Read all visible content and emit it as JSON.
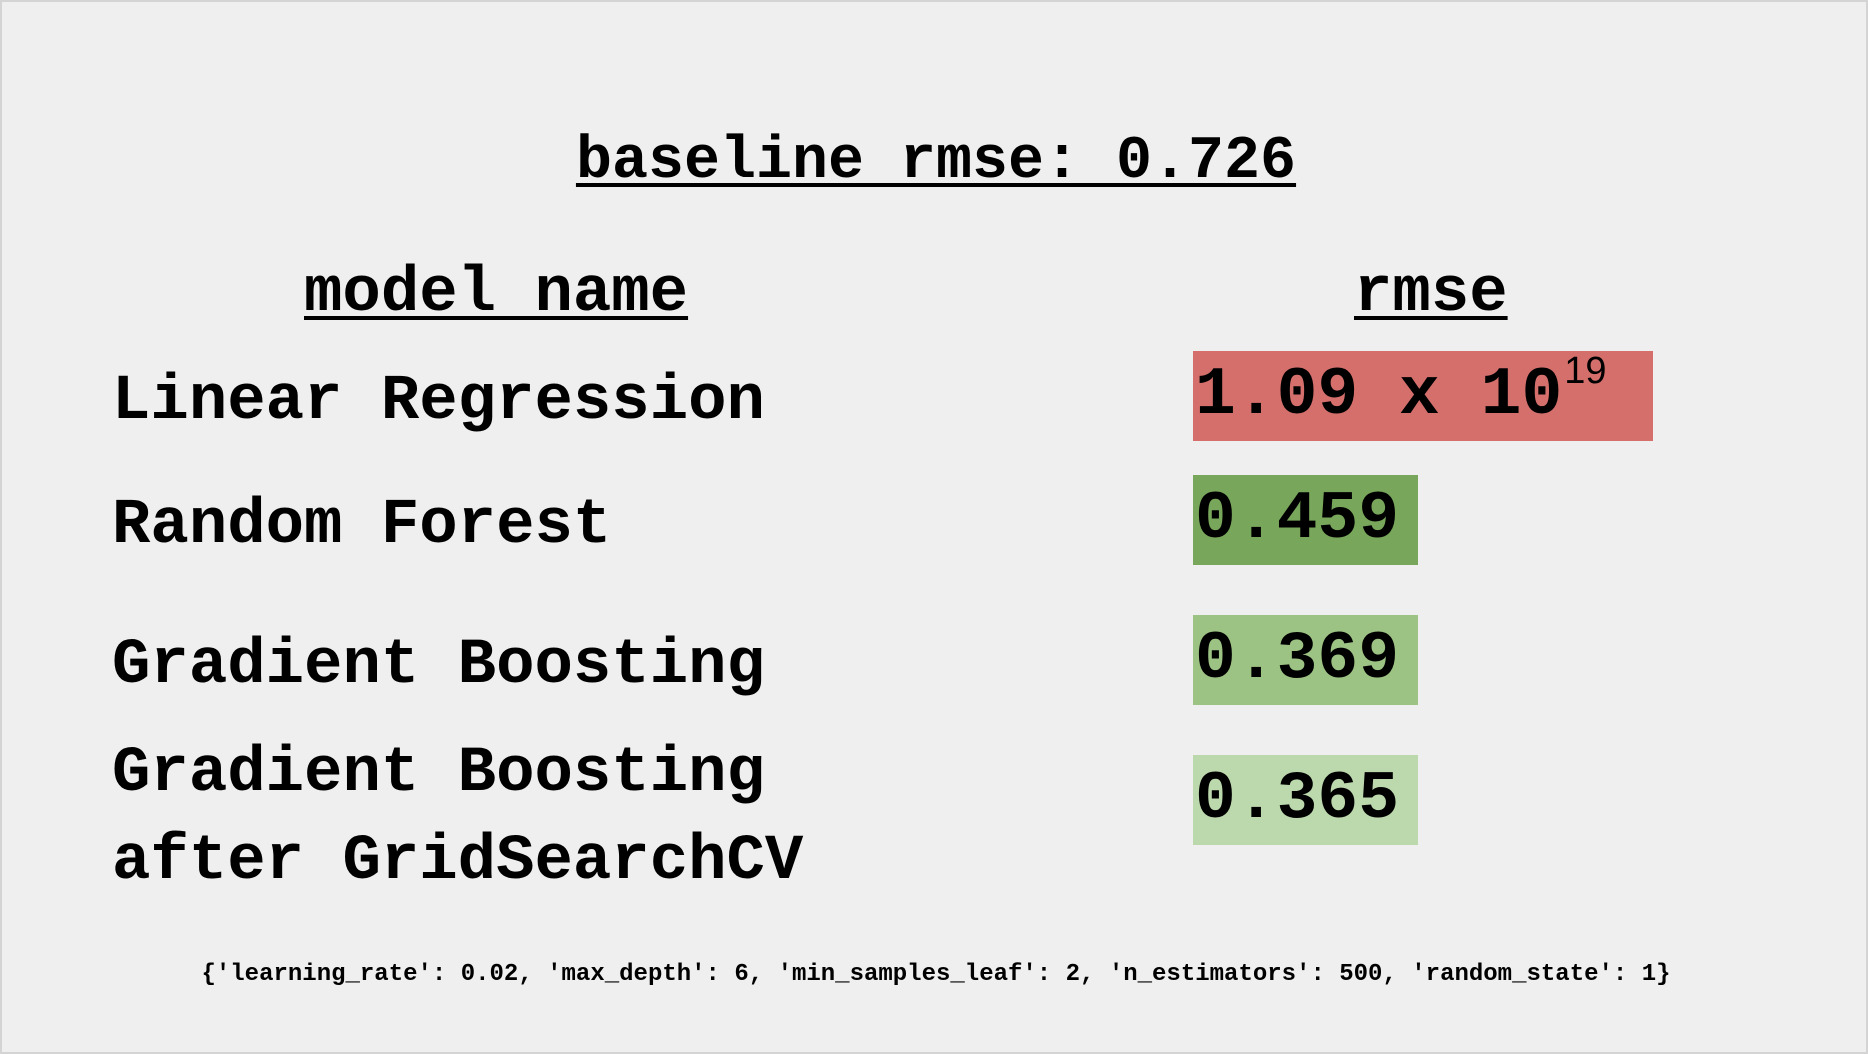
{
  "baseline": "baseline rmse: 0.726",
  "headers": {
    "model_name": "model name",
    "rmse": "rmse"
  },
  "rows": [
    {
      "model": "Linear Regression",
      "rmse_mantissa": "1.09 x 10",
      "rmse_exponent": "19",
      "color": "#d46f6c"
    },
    {
      "model": "Random Forest",
      "rmse": "0.459",
      "color": "#78a65a"
    },
    {
      "model": "Gradient Boosting",
      "rmse": "0.369",
      "color": "#9dc384"
    },
    {
      "model_line1": "Gradient Boosting",
      "model_line2": "after GridSearchCV",
      "rmse": "0.365",
      "color": "#bcd8ad"
    }
  ],
  "best_params": "{'learning_rate': 0.02, 'max_depth': 6, 'min_samples_leaf': 2, 'n_estimators': 500, 'random_state': 1}"
}
